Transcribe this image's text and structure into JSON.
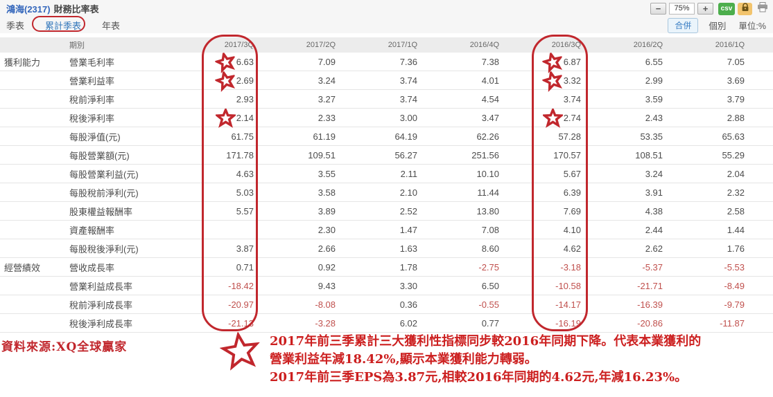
{
  "header": {
    "stock": "鴻海(2317)",
    "title": "財務比率表",
    "zoom_minus": "−",
    "zoom_value": "75%",
    "zoom_plus": "+",
    "csv_label": "csv"
  },
  "tabs": [
    {
      "label": "季表",
      "active": false
    },
    {
      "label": "累計季表",
      "active": true
    },
    {
      "label": "年表",
      "active": false
    }
  ],
  "view_options": {
    "merge_label": "合併",
    "individual_label": "個別",
    "unit_label": "單位:%"
  },
  "colors": {
    "accent_blue": "#3377bb",
    "negative_red": "#c0504d",
    "annotation_red": "#c1272d",
    "csv_green": "#4cae4c",
    "lock_yellow": "#f2c46d"
  },
  "table": {
    "period_header": "期別",
    "columns": [
      "2017/3Q",
      "2017/2Q",
      "2017/1Q",
      "2016/4Q",
      "2016/3Q",
      "2016/2Q",
      "2016/1Q"
    ],
    "rows": [
      {
        "group": "獲利能力",
        "label": "營業毛利率",
        "values": [
          "6.63",
          "7.09",
          "7.36",
          "7.38",
          "6.87",
          "6.55",
          "7.05"
        ],
        "stars": [
          0,
          4
        ]
      },
      {
        "group": "",
        "label": "營業利益率",
        "values": [
          "2.69",
          "3.24",
          "3.74",
          "4.01",
          "3.32",
          "2.99",
          "3.69"
        ],
        "stars": [
          0,
          4
        ]
      },
      {
        "group": "",
        "label": "稅前淨利率",
        "values": [
          "2.93",
          "3.27",
          "3.74",
          "4.54",
          "3.74",
          "3.59",
          "3.79"
        ],
        "stars": []
      },
      {
        "group": "",
        "label": "稅後淨利率",
        "values": [
          "2.14",
          "2.33",
          "3.00",
          "3.47",
          "2.74",
          "2.43",
          "2.88"
        ],
        "stars": [
          0,
          4
        ]
      },
      {
        "group": "",
        "label": "每股淨值(元)",
        "values": [
          "61.75",
          "61.19",
          "64.19",
          "62.26",
          "57.28",
          "53.35",
          "65.63"
        ],
        "stars": []
      },
      {
        "group": "",
        "label": "每股營業額(元)",
        "values": [
          "171.78",
          "109.51",
          "56.27",
          "251.56",
          "170.57",
          "108.51",
          "55.29"
        ],
        "stars": []
      },
      {
        "group": "",
        "label": "每股營業利益(元)",
        "values": [
          "4.63",
          "3.55",
          "2.11",
          "10.10",
          "5.67",
          "3.24",
          "2.04"
        ],
        "stars": []
      },
      {
        "group": "",
        "label": "每股稅前淨利(元)",
        "values": [
          "5.03",
          "3.58",
          "2.10",
          "11.44",
          "6.39",
          "3.91",
          "2.32"
        ],
        "stars": []
      },
      {
        "group": "",
        "label": "股東權益報酬率",
        "values": [
          "5.57",
          "3.89",
          "2.52",
          "13.80",
          "7.69",
          "4.38",
          "2.58"
        ],
        "stars": []
      },
      {
        "group": "",
        "label": "資產報酬率",
        "values": [
          "",
          "2.30",
          "1.47",
          "7.08",
          "4.10",
          "2.44",
          "1.44"
        ],
        "stars": []
      },
      {
        "group": "",
        "label": "每股稅後淨利(元)",
        "values": [
          "3.87",
          "2.66",
          "1.63",
          "8.60",
          "4.62",
          "2.62",
          "1.76"
        ],
        "stars": []
      },
      {
        "group": "經營績效",
        "label": "營收成長率",
        "values": [
          "0.71",
          "0.92",
          "1.78",
          "-2.75",
          "-3.18",
          "-5.37",
          "-5.53"
        ],
        "stars": []
      },
      {
        "group": "",
        "label": "營業利益成長率",
        "values": [
          "-18.42",
          "9.43",
          "3.30",
          "6.50",
          "-10.58",
          "-21.71",
          "-8.49"
        ],
        "stars": []
      },
      {
        "group": "",
        "label": "稅前淨利成長率",
        "values": [
          "-20.97",
          "-8.08",
          "0.36",
          "-0.55",
          "-14.17",
          "-16.39",
          "-9.79"
        ],
        "stars": []
      },
      {
        "group": "",
        "label": "稅後淨利成長率",
        "values": [
          "-21.13",
          "-3.28",
          "6.02",
          "0.77",
          "-16.19",
          "-20.86",
          "-11.87"
        ],
        "stars": []
      }
    ]
  },
  "annotations": {
    "source": "資料來源:XQ全球贏家",
    "line1": "2017年前三季累計三大獲利性指標同步較2016年同期下降。代表本業獲利的",
    "line2": "營業利益年減18.42%,顯示本業獲利能力轉弱。",
    "line3": "2017年前三季EPS為3.87元,相較2016年同期的4.62元,年減16.23%。"
  }
}
